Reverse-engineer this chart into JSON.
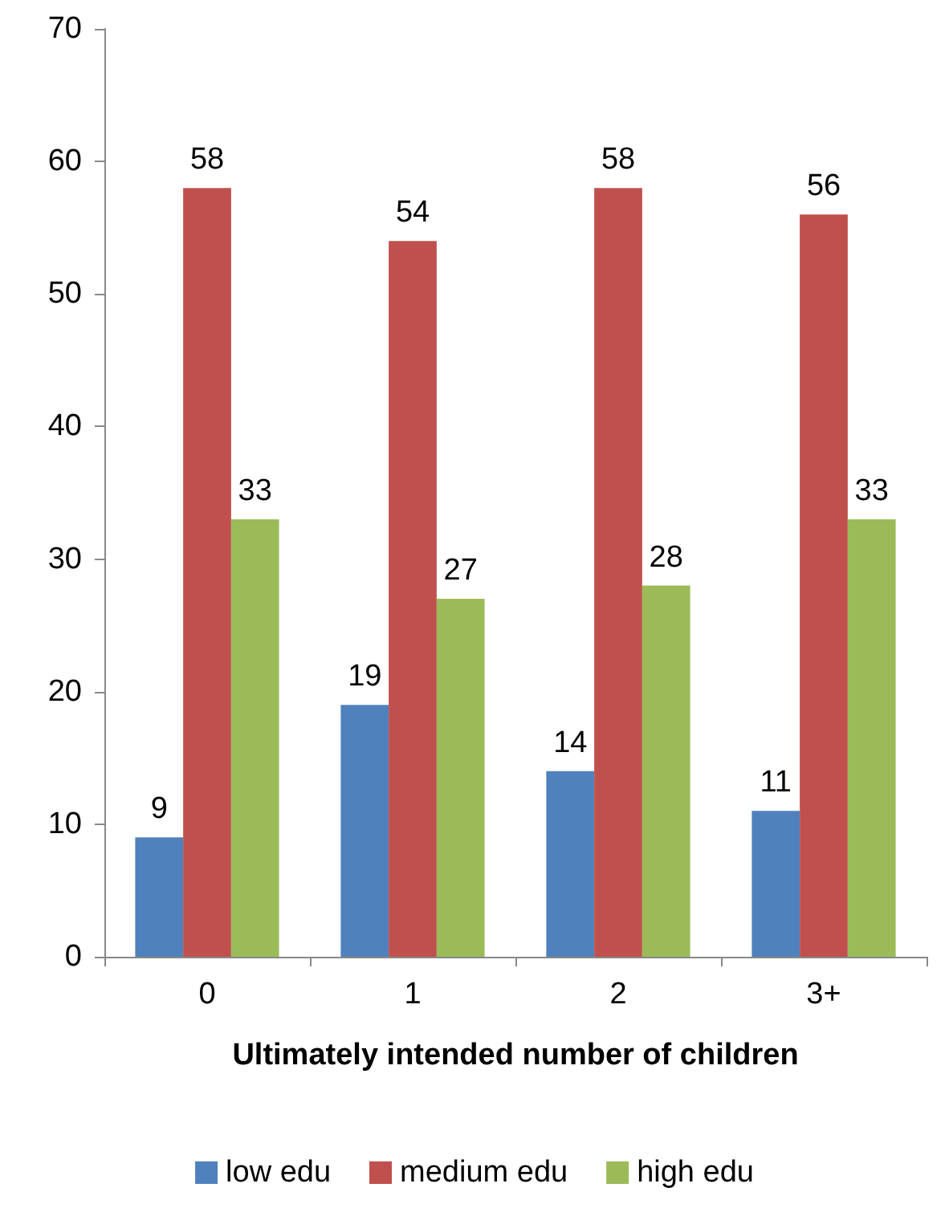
{
  "chart_data": {
    "type": "bar",
    "xlabel": "Ultimately intended number of children",
    "categories": [
      "0",
      "1",
      "2",
      "3+"
    ],
    "series": [
      {
        "name": "low edu",
        "color": "#4f81bd",
        "values": [
          9,
          19,
          14,
          11
        ]
      },
      {
        "name": "medium edu",
        "color": "#c0504d",
        "values": [
          58,
          54,
          58,
          56
        ]
      },
      {
        "name": "high edu",
        "color": "#9bbb59",
        "values": [
          33,
          27,
          28,
          33
        ]
      }
    ],
    "ylim": [
      0,
      70
    ],
    "yticks": [
      0,
      10,
      20,
      30,
      40,
      50,
      60,
      70
    ],
    "grid": false,
    "legend": "bottom",
    "data_labels": true
  }
}
